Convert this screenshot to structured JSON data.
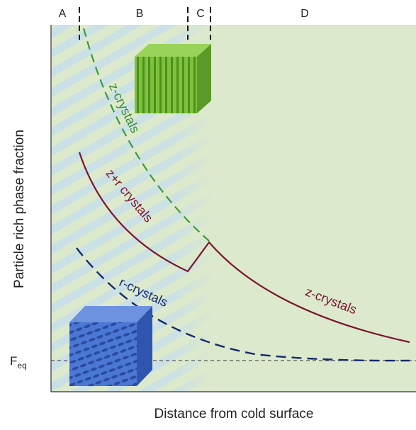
{
  "regions": [
    "A",
    "B",
    "C",
    "D"
  ],
  "axes": {
    "x_label": "Distance from cold surface",
    "y_label": "Particle rich phase fraction"
  },
  "equilibrium": {
    "main": "F",
    "sub": "eq"
  },
  "curve_labels": {
    "z_crystals_dashed": "z-crystals",
    "z_r_crystals": "z+r crystals",
    "r_crystals": "r-crystals",
    "z_crystals_solid": "z-crystals"
  }
}
